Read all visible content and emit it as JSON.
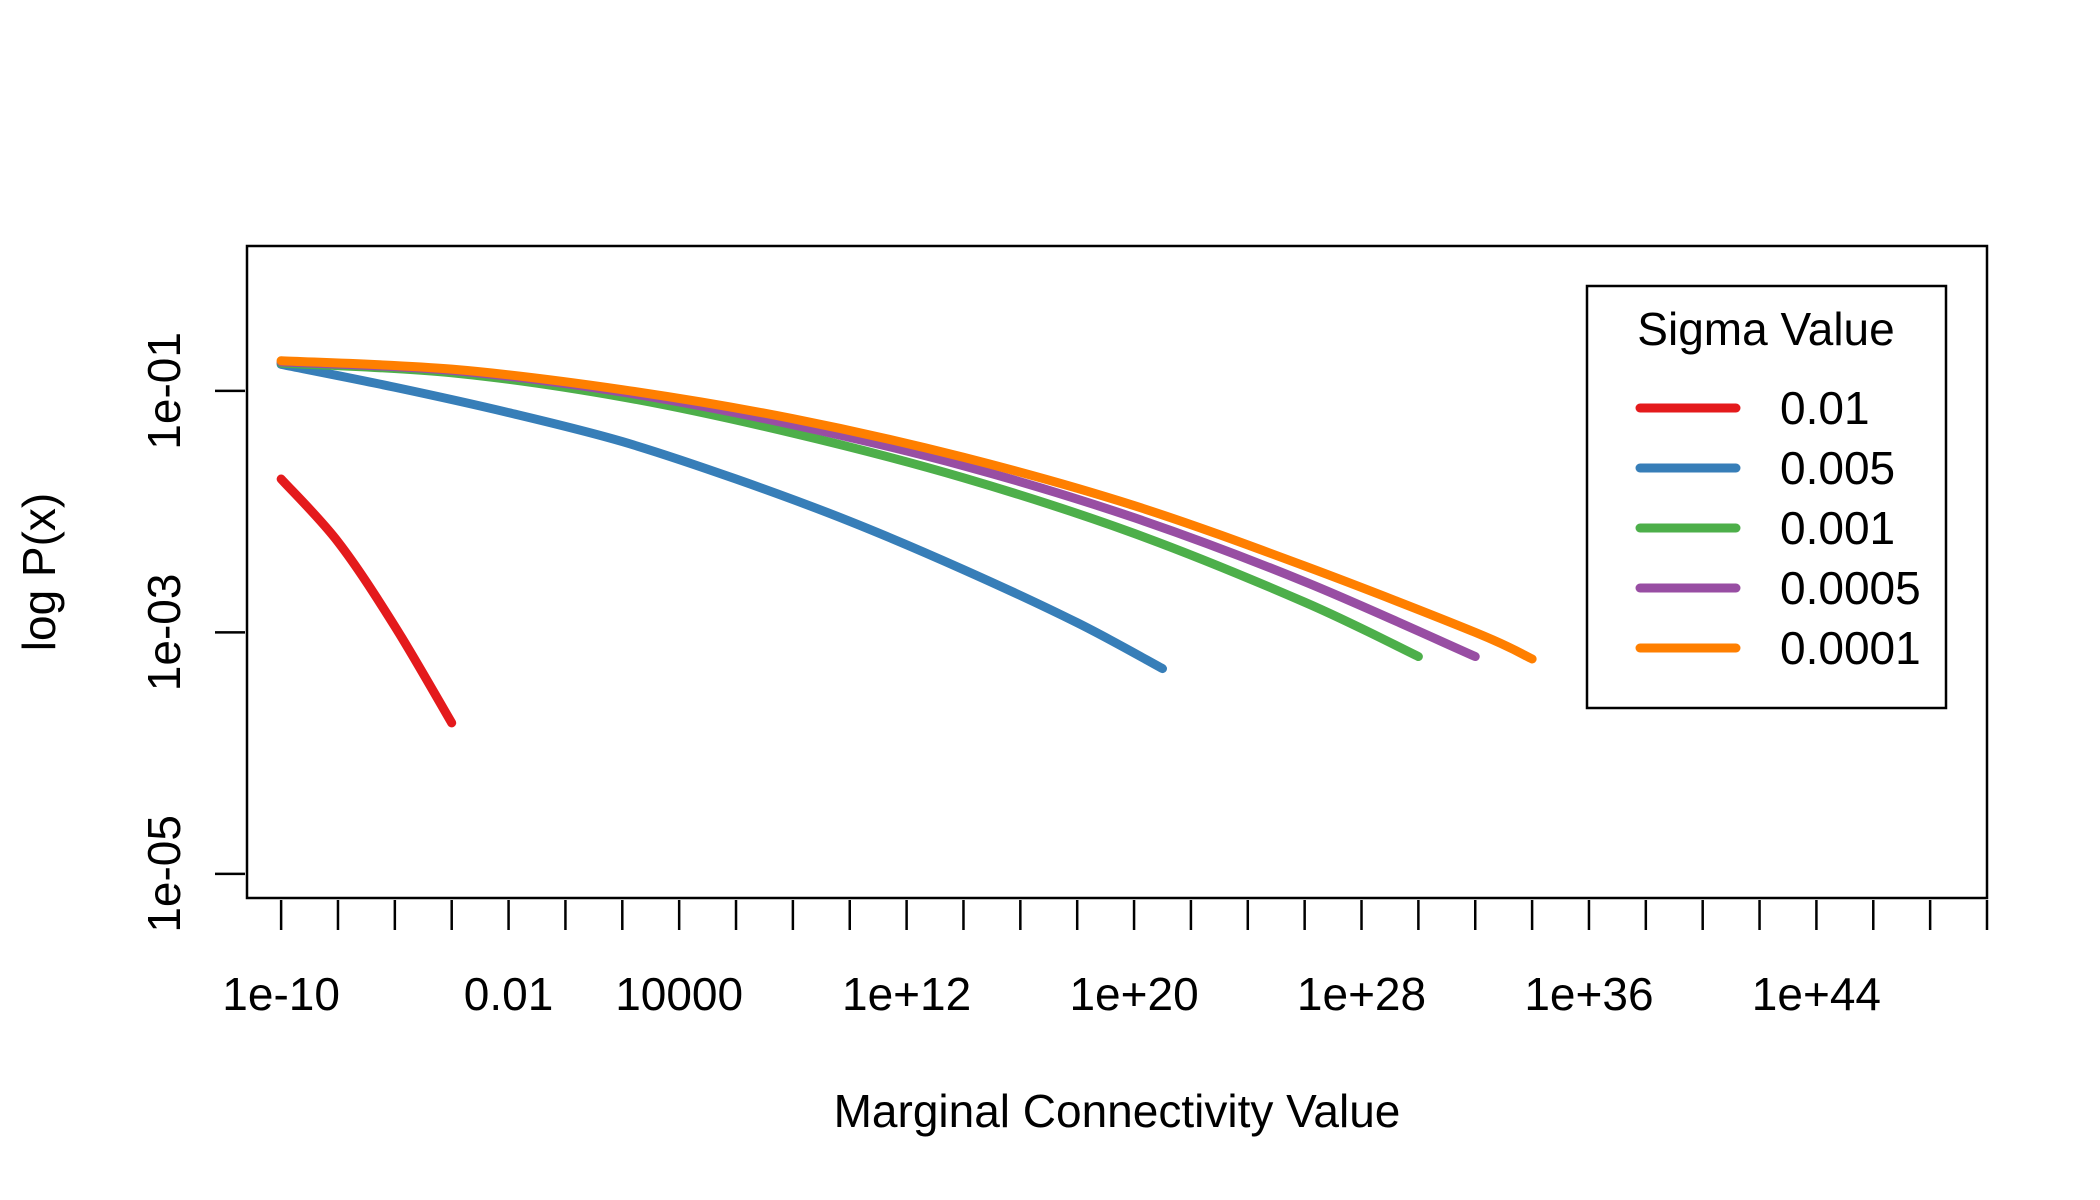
{
  "chart_data": {
    "type": "line",
    "title": "",
    "xlabel": "Marginal Connectivity Value",
    "ylabel": "log P(x)",
    "x_scale": "log10",
    "y_scale": "log10",
    "xlim_log10": [
      -11.2,
      50.0
    ],
    "ylim_log10": [
      -5.2,
      0.2
    ],
    "grid": false,
    "x_minor_ticks_log10": [
      -10,
      -8,
      -6,
      -4,
      -2,
      0,
      2,
      4,
      6,
      8,
      10,
      12,
      14,
      16,
      18,
      20,
      22,
      24,
      26,
      28,
      30,
      32,
      34,
      36,
      38,
      40,
      42,
      44,
      46,
      48,
      50
    ],
    "x_tick_labels": [
      {
        "log10": -10,
        "label": "1e-10"
      },
      {
        "log10": -2,
        "label": "0.01"
      },
      {
        "log10": 4,
        "label": "10000"
      },
      {
        "log10": 12,
        "label": "1e+12"
      },
      {
        "log10": 20,
        "label": "1e+20"
      },
      {
        "log10": 28,
        "label": "1e+28"
      },
      {
        "log10": 36,
        "label": "1e+36"
      },
      {
        "log10": 44,
        "label": "1e+44"
      }
    ],
    "y_tick_labels": [
      {
        "log10": -1,
        "label": "1e-01"
      },
      {
        "log10": -3,
        "label": "1e-03"
      },
      {
        "log10": -5,
        "label": "1e-05"
      }
    ],
    "legend": {
      "title": "Sigma Value",
      "position": "top-right"
    },
    "series": [
      {
        "name": "0.01",
        "color": "#E41A1C",
        "points": [
          [
            -10,
            -1.73
          ],
          [
            -8,
            -2.25
          ],
          [
            -6,
            -2.95
          ],
          [
            -4,
            -3.75
          ]
        ]
      },
      {
        "name": "0.005",
        "color": "#377EB8",
        "points": [
          [
            -10,
            -0.78
          ],
          [
            -6,
            -0.97
          ],
          [
            -2,
            -1.18
          ],
          [
            2,
            -1.42
          ],
          [
            6,
            -1.73
          ],
          [
            10,
            -2.08
          ],
          [
            14,
            -2.48
          ],
          [
            18,
            -2.92
          ],
          [
            21,
            -3.3
          ]
        ]
      },
      {
        "name": "0.001",
        "color": "#4DAF4A",
        "points": [
          [
            -10,
            -0.77
          ],
          [
            -4,
            -0.85
          ],
          [
            2,
            -1.05
          ],
          [
            8,
            -1.35
          ],
          [
            14,
            -1.72
          ],
          [
            20,
            -2.18
          ],
          [
            26,
            -2.75
          ],
          [
            30,
            -3.2
          ]
        ]
      },
      {
        "name": "0.0005",
        "color": "#984EA3",
        "points": [
          [
            -10,
            -0.76
          ],
          [
            -4,
            -0.83
          ],
          [
            2,
            -1.01
          ],
          [
            8,
            -1.28
          ],
          [
            14,
            -1.62
          ],
          [
            20,
            -2.05
          ],
          [
            26,
            -2.58
          ],
          [
            32,
            -3.2
          ]
        ]
      },
      {
        "name": "0.0001",
        "color": "#FF7F00",
        "points": [
          [
            -10,
            -0.75
          ],
          [
            -4,
            -0.82
          ],
          [
            2,
            -0.99
          ],
          [
            8,
            -1.23
          ],
          [
            14,
            -1.55
          ],
          [
            20,
            -1.95
          ],
          [
            26,
            -2.45
          ],
          [
            32,
            -3.0
          ],
          [
            34,
            -3.22
          ]
        ]
      }
    ]
  }
}
